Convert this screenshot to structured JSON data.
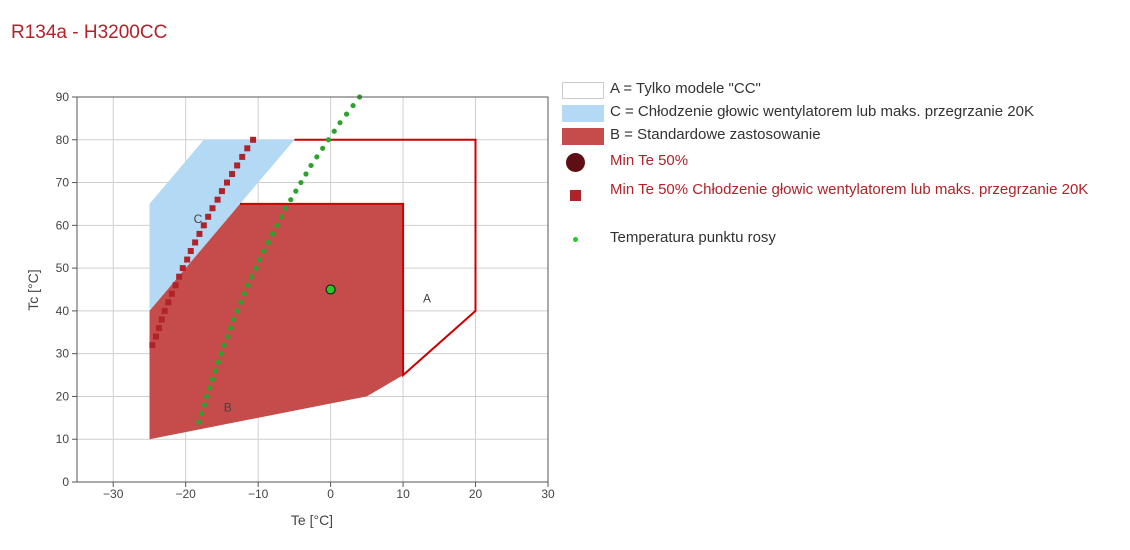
{
  "title": "R134a - H3200CC",
  "colors": {
    "title": "#b0232a",
    "area_A_stroke": "#cc0000",
    "area_C_fill": "#b3d9f5",
    "area_B_fill": "#c64b4b",
    "min_te_50_marker": "#5e0f14",
    "min_te_50_cooling_marker": "#b0232a",
    "dew_point_marker": "#2ea12e",
    "min_te_point_fill": "#22cc22"
  },
  "legend": [
    {
      "key": "A",
      "label": "A = Tylko modele \"CC\"",
      "symbol": "box-outline",
      "color": "#cccccc"
    },
    {
      "key": "C",
      "label": "C = Chłodzenie głowic wentylatorem lub maks. przegrzanie 20K",
      "symbol": "box-fill",
      "color": "#b3d9f5"
    },
    {
      "key": "B",
      "label": "B = Standardowe zastosowanie",
      "symbol": "box-fill",
      "color": "#c64b4b"
    },
    {
      "key": "min50",
      "label": "Min Te 50%",
      "symbol": "circle",
      "color": "#5e0f14",
      "red_text": true
    },
    {
      "key": "min50c",
      "label": "Min Te 50% Chłodzenie głowic wentylatorem lub maks. przegrzanie 20K",
      "symbol": "square",
      "color": "#b0232a",
      "red_text": true
    },
    {
      "key": "dew",
      "label": "Temperatura punktu rosy",
      "symbol": "dot",
      "color": "#22cc22"
    }
  ],
  "chart_data": {
    "type": "scatter",
    "xlabel": "Te [°C]",
    "ylabel": "Tc [°C]",
    "xlim": [
      -35,
      30
    ],
    "ylim": [
      0,
      90
    ],
    "xticks": [
      -30,
      -20,
      -10,
      0,
      10,
      20,
      30
    ],
    "yticks": [
      0,
      10,
      20,
      30,
      40,
      50,
      60,
      70,
      80,
      90
    ],
    "grid": true,
    "legend_position": "right",
    "areas": [
      {
        "name": "A",
        "label": "A",
        "style": "outline",
        "points": [
          [
            -5,
            80
          ],
          [
            20,
            80
          ],
          [
            20,
            40
          ],
          [
            10,
            25
          ],
          [
            10,
            65
          ],
          [
            -12.5,
            65
          ]
        ]
      },
      {
        "name": "C",
        "label": "C",
        "style": "fill",
        "points": [
          [
            -25,
            40
          ],
          [
            -25,
            65
          ],
          [
            -17.5,
            80
          ],
          [
            -5,
            80
          ],
          [
            -12.5,
            65
          ],
          [
            -25,
            40
          ]
        ]
      },
      {
        "name": "B",
        "label": "B",
        "style": "fill",
        "points": [
          [
            -25,
            10
          ],
          [
            5,
            20
          ],
          [
            10,
            25
          ],
          [
            10,
            65
          ],
          [
            -12.5,
            65
          ],
          [
            -25,
            40
          ]
        ]
      }
    ],
    "area_labels": [
      {
        "text": "A",
        "x": 13.3,
        "y": 42
      },
      {
        "text": "C",
        "x": -18.3,
        "y": 60.5
      },
      {
        "text": "B",
        "x": -14.2,
        "y": 16.5
      }
    ],
    "series": [
      {
        "name": "Min Te 50%",
        "marker": "circle",
        "points": [
          [
            0,
            45
          ]
        ]
      },
      {
        "name": "Min Te 50% Chłodzenie głowic wentylatorem lub maks. przegrzanie 20K",
        "marker": "square",
        "points": [
          [
            -24.6,
            32
          ],
          [
            -24.1,
            34
          ],
          [
            -23.7,
            36
          ],
          [
            -23.3,
            38
          ],
          [
            -22.9,
            40
          ],
          [
            -22.4,
            42
          ],
          [
            -21.9,
            44
          ],
          [
            -21.4,
            46
          ],
          [
            -20.9,
            48
          ],
          [
            -20.4,
            50
          ],
          [
            -19.8,
            52
          ],
          [
            -19.3,
            54
          ],
          [
            -18.7,
            56
          ],
          [
            -18.1,
            58
          ],
          [
            -17.5,
            60
          ],
          [
            -16.9,
            62
          ],
          [
            -16.3,
            64
          ],
          [
            -15.6,
            66
          ],
          [
            -15,
            68
          ],
          [
            -14.3,
            70
          ],
          [
            -13.6,
            72
          ],
          [
            -12.9,
            74
          ],
          [
            -12.2,
            76
          ],
          [
            -11.5,
            78
          ],
          [
            -10.7,
            80
          ]
        ]
      },
      {
        "name": "Temperatura punktu rosy",
        "marker": "dot",
        "points": [
          [
            -18.2,
            14
          ],
          [
            -17.8,
            16
          ],
          [
            -17.4,
            18
          ],
          [
            -17.1,
            20
          ],
          [
            -16.7,
            22
          ],
          [
            -16.3,
            24
          ],
          [
            -15.9,
            26
          ],
          [
            -15.5,
            28
          ],
          [
            -15.1,
            30
          ],
          [
            -14.7,
            32
          ],
          [
            -14.2,
            34
          ],
          [
            -13.8,
            36
          ],
          [
            -13.4,
            38
          ],
          [
            -12.9,
            40
          ],
          [
            -12.4,
            42
          ],
          [
            -11.9,
            44
          ],
          [
            -11.4,
            46
          ],
          [
            -10.9,
            48
          ],
          [
            -10.3,
            50
          ],
          [
            -9.8,
            52
          ],
          [
            -9.2,
            54
          ],
          [
            -8.6,
            56
          ],
          [
            -8,
            58
          ],
          [
            -7.4,
            60
          ],
          [
            -6.8,
            62
          ],
          [
            -6.2,
            64
          ],
          [
            -5.5,
            66
          ],
          [
            -4.8,
            68
          ],
          [
            -4.1,
            70
          ],
          [
            -3.4,
            72
          ],
          [
            -2.7,
            74
          ],
          [
            -1.9,
            76
          ],
          [
            -1.1,
            78
          ],
          [
            -0.3,
            80
          ],
          [
            0.5,
            82
          ],
          [
            1.3,
            84
          ],
          [
            2.2,
            86
          ],
          [
            3.1,
            88
          ],
          [
            4,
            90
          ]
        ]
      }
    ]
  }
}
